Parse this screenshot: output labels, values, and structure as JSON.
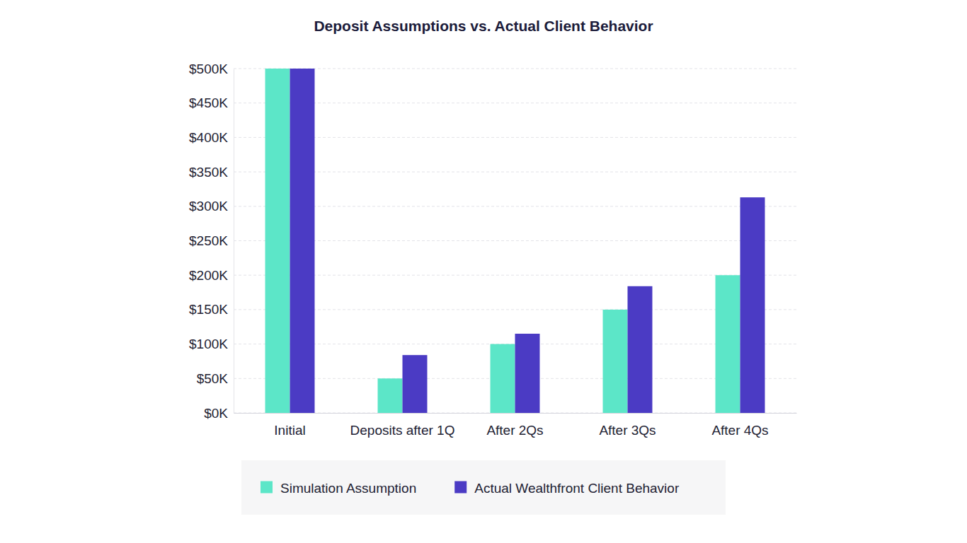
{
  "chart_data": {
    "type": "bar",
    "title": "Deposit Assumptions vs. Actual Client Behavior",
    "categories": [
      "Initial",
      "Deposits after 1Q",
      "After 2Qs",
      "After 3Qs",
      "After 4Qs"
    ],
    "series": [
      {
        "name": "Simulation Assumption",
        "color": "#5ce6c8",
        "values": [
          500000,
          50000,
          100000,
          150000,
          200000
        ]
      },
      {
        "name": "Actual Wealthfront Client Behavior",
        "color": "#4b3bc4",
        "values": [
          500000,
          84000,
          115000,
          184000,
          313000
        ]
      }
    ],
    "ylim": [
      0,
      500000
    ],
    "yticks": [
      {
        "value": 0,
        "label": "$0K"
      },
      {
        "value": 50000,
        "label": "$50K"
      },
      {
        "value": 100000,
        "label": "$100K"
      },
      {
        "value": 150000,
        "label": "$150K"
      },
      {
        "value": 200000,
        "label": "$200K"
      },
      {
        "value": 250000,
        "label": "$250K"
      },
      {
        "value": 300000,
        "label": "$300K"
      },
      {
        "value": 350000,
        "label": "$350K"
      },
      {
        "value": 400000,
        "label": "$400K"
      },
      {
        "value": 450000,
        "label": "$450K"
      },
      {
        "value": 500000,
        "label": "$500K"
      }
    ],
    "grid": true,
    "legend": "bottom"
  }
}
